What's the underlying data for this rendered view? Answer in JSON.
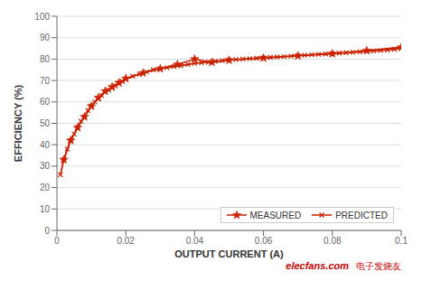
{
  "chart_data": {
    "type": "line",
    "xlabel": "OUTPUT CURRENT (A)",
    "ylabel": "EFFICIENCY (%)",
    "xlim": [
      0,
      0.1
    ],
    "ylim": [
      0,
      100
    ],
    "xticks": [
      0,
      0.02,
      0.04,
      0.06,
      0.08,
      0.1
    ],
    "yticks": [
      0,
      10,
      20,
      30,
      40,
      50,
      60,
      70,
      80,
      90,
      100
    ],
    "grid": "y",
    "legend": "lower right",
    "series": [
      {
        "name": "MEASURED",
        "color": "#cc2200",
        "marker": "star",
        "x": [
          0.002,
          0.004,
          0.006,
          0.008,
          0.01,
          0.012,
          0.014,
          0.016,
          0.018,
          0.02,
          0.025,
          0.03,
          0.035,
          0.04,
          0.045,
          0.05,
          0.06,
          0.07,
          0.08,
          0.09,
          0.1
        ],
        "values": [
          33,
          42,
          48,
          53,
          58,
          62,
          65,
          67,
          69,
          71,
          73.5,
          75.5,
          77.5,
          80,
          78.5,
          79.5,
          80.5,
          81.5,
          82.5,
          84,
          85.5
        ]
      },
      {
        "name": "PREDICTED",
        "color": "#cc2200",
        "marker": "x",
        "x": [
          0.001,
          0.002,
          0.003,
          0.004,
          0.005,
          0.006,
          0.007,
          0.008,
          0.009,
          0.01,
          0.011,
          0.012,
          0.013,
          0.014,
          0.015,
          0.016,
          0.017,
          0.018,
          0.019,
          0.02,
          0.022,
          0.024,
          0.026,
          0.028,
          0.03,
          0.032,
          0.034,
          0.036,
          0.038,
          0.04,
          0.042,
          0.044,
          0.046,
          0.048,
          0.05,
          0.052,
          0.054,
          0.056,
          0.058,
          0.06,
          0.062,
          0.064,
          0.066,
          0.068,
          0.07,
          0.072,
          0.074,
          0.076,
          0.078,
          0.08,
          0.082,
          0.084,
          0.086,
          0.088,
          0.09,
          0.092,
          0.094,
          0.096,
          0.098,
          0.1
        ],
        "values": [
          26,
          33,
          38,
          42,
          45,
          48,
          51,
          53,
          56,
          58,
          60,
          61.5,
          63,
          64.5,
          65.5,
          66.5,
          67.5,
          68.5,
          69.5,
          70.5,
          72,
          73,
          74,
          75,
          75.5,
          76,
          76.5,
          77,
          77.5,
          78,
          78.3,
          78.6,
          79,
          79.3,
          79.6,
          79.8,
          80,
          80.2,
          80.4,
          80.6,
          80.8,
          81,
          81.2,
          81.4,
          81.6,
          81.8,
          82,
          82.2,
          82.4,
          82.6,
          82.8,
          83,
          83.2,
          83.4,
          83.6,
          83.8,
          84,
          84.3,
          84.6,
          85.2
        ]
      }
    ],
    "annotations": [
      {
        "text": "elecfans.com",
        "color": "#cc0000"
      },
      {
        "text": "电子发烧友",
        "color": "#cc0000"
      }
    ]
  }
}
